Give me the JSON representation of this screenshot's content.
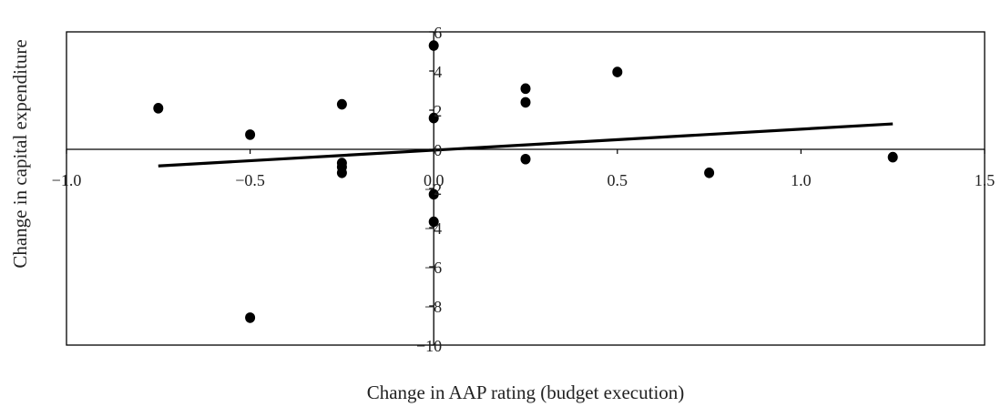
{
  "chart_data": {
    "type": "scatter",
    "title": "",
    "xlabel": "Change in AAP rating (budget execution)",
    "ylabel": "Change in capital expenditure",
    "xlim": [
      -1.0,
      1.5
    ],
    "ylim": [
      -10,
      6
    ],
    "x_ticks": [
      -1.0,
      -0.5,
      0.0,
      0.5,
      1.0,
      1.5
    ],
    "x_tick_labels": [
      "−1.0",
      "−0.5",
      "0.0",
      "0.5",
      "1.0",
      "1.5"
    ],
    "y_ticks": [
      -10,
      -8,
      -6,
      -4,
      -2,
      0,
      2,
      4,
      6
    ],
    "y_tick_labels": [
      "−10",
      "−8",
      "−6",
      "−4",
      "−2",
      "0",
      "2",
      "4",
      "6"
    ],
    "grid": false,
    "legend": "none",
    "points": [
      {
        "x": -0.75,
        "y": 2.1
      },
      {
        "x": -0.5,
        "y": 0.75
      },
      {
        "x": -0.5,
        "y": -8.6
      },
      {
        "x": -0.25,
        "y": 2.3
      },
      {
        "x": -0.25,
        "y": -0.7
      },
      {
        "x": -0.25,
        "y": -0.9
      },
      {
        "x": -0.25,
        "y": -1.2
      },
      {
        "x": 0.0,
        "y": 5.3
      },
      {
        "x": 0.0,
        "y": 1.6
      },
      {
        "x": 0.0,
        "y": -2.3
      },
      {
        "x": 0.0,
        "y": -3.7
      },
      {
        "x": 0.25,
        "y": 3.1
      },
      {
        "x": 0.25,
        "y": 2.4
      },
      {
        "x": 0.25,
        "y": -0.5
      },
      {
        "x": 0.5,
        "y": 3.95
      },
      {
        "x": 0.75,
        "y": -1.2
      },
      {
        "x": 1.25,
        "y": -0.4
      }
    ],
    "trendline": {
      "x": [
        -0.75,
        1.25
      ],
      "y": [
        -0.85,
        1.3
      ]
    },
    "colors": {
      "points": "#000000",
      "trendline": "#000000",
      "frame": "#000000"
    }
  }
}
